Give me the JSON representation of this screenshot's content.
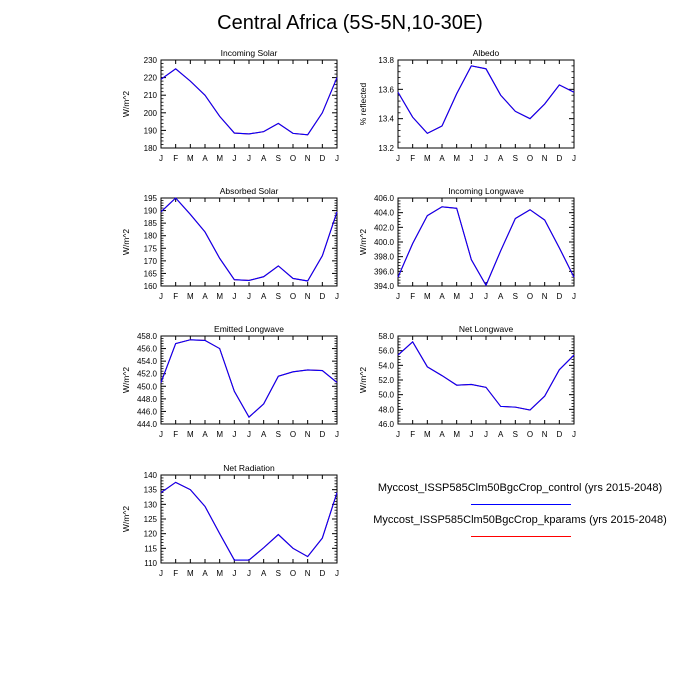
{
  "title": "Central Africa (5S-5N,10-30E)",
  "colors": {
    "control": "#0000ff",
    "kparams": "#ff0000",
    "axis": "#000000"
  },
  "legend": [
    {
      "label": "Myccost_ISSP585Clm50BgcCrop_control (yrs 2015-2048)",
      "color": "#0000ff"
    },
    {
      "label": "Myccost_ISSP585Clm50BgcCrop_kparams (yrs 2015-2048)",
      "color": "#ff0000"
    }
  ],
  "chart_data": [
    {
      "type": "line",
      "title": "Incoming Solar",
      "ylabel": "W/m^2",
      "categories": [
        "J",
        "F",
        "M",
        "A",
        "M",
        "J",
        "J",
        "A",
        "S",
        "O",
        "N",
        "D",
        "J"
      ],
      "ylim": [
        180,
        230
      ],
      "yticks": [
        180,
        190,
        200,
        210,
        220,
        230
      ],
      "ydec": 0,
      "series": [
        {
          "color": "#ff0000",
          "values": [
            219,
            225,
            218,
            210,
            198,
            188.5,
            188,
            189.3,
            194,
            188.3,
            187.5,
            200,
            220
          ]
        },
        {
          "color": "#0000ff",
          "values": [
            219,
            225,
            218,
            210,
            198,
            188.5,
            188,
            189.3,
            194,
            188.3,
            187.5,
            200,
            220
          ]
        }
      ]
    },
    {
      "type": "line",
      "title": "Albedo",
      "ylabel": "% reflected",
      "categories": [
        "J",
        "F",
        "M",
        "A",
        "M",
        "J",
        "J",
        "A",
        "S",
        "O",
        "N",
        "D",
        "J"
      ],
      "ylim": [
        13.2,
        13.8
      ],
      "yticks": [
        13.2,
        13.4,
        13.6,
        13.8
      ],
      "ydec": 1,
      "series": [
        {
          "color": "#ff0000",
          "values": [
            13.58,
            13.41,
            13.3,
            13.35,
            13.57,
            13.76,
            13.74,
            13.56,
            13.45,
            13.4,
            13.5,
            13.63,
            13.58
          ]
        },
        {
          "color": "#0000ff",
          "values": [
            13.58,
            13.41,
            13.3,
            13.35,
            13.57,
            13.76,
            13.74,
            13.56,
            13.45,
            13.4,
            13.5,
            13.63,
            13.58
          ]
        }
      ]
    },
    {
      "type": "line",
      "title": "Absorbed Solar",
      "ylabel": "W/m^2",
      "categories": [
        "J",
        "F",
        "M",
        "A",
        "M",
        "J",
        "J",
        "A",
        "S",
        "O",
        "N",
        "D",
        "J"
      ],
      "ylim": [
        160,
        195
      ],
      "yticks": [
        160,
        165,
        170,
        175,
        180,
        185,
        190,
        195
      ],
      "ydec": 0,
      "series": [
        {
          "color": "#ff0000",
          "values": [
            189.5,
            195,
            188.5,
            181.5,
            171,
            162.5,
            162.2,
            163.7,
            168,
            163,
            162,
            172,
            189.5
          ]
        },
        {
          "color": "#0000ff",
          "values": [
            189.5,
            195,
            188.5,
            181.5,
            171,
            162.5,
            162.2,
            163.7,
            168,
            163,
            162,
            172,
            189.5
          ]
        }
      ]
    },
    {
      "type": "line",
      "title": "Incoming Longwave",
      "ylabel": "W/m^2",
      "categories": [
        "J",
        "F",
        "M",
        "A",
        "M",
        "J",
        "J",
        "A",
        "S",
        "O",
        "N",
        "D",
        "J"
      ],
      "ylim": [
        394,
        406
      ],
      "yticks": [
        394,
        396,
        398,
        400,
        402,
        404,
        406
      ],
      "ydec": 1,
      "series": [
        {
          "color": "#ff0000",
          "values": [
            395.2,
            399.8,
            403.6,
            404.8,
            404.6,
            397.6,
            394.1,
            398.8,
            403.2,
            404.4,
            403,
            399.2,
            395.2
          ]
        },
        {
          "color": "#0000ff",
          "values": [
            395.2,
            399.8,
            403.6,
            404.8,
            404.6,
            397.6,
            394.1,
            398.8,
            403.2,
            404.4,
            403,
            399.2,
            395.2
          ]
        }
      ]
    },
    {
      "type": "line",
      "title": "Emitted Longwave",
      "ylabel": "W/m^2",
      "categories": [
        "J",
        "F",
        "M",
        "A",
        "M",
        "J",
        "J",
        "A",
        "S",
        "O",
        "N",
        "D",
        "J"
      ],
      "ylim": [
        444,
        458
      ],
      "yticks": [
        444,
        446,
        448,
        450,
        452,
        454,
        456,
        458
      ],
      "ydec": 1,
      "series": [
        {
          "color": "#ff0000",
          "values": [
            450.6,
            456.8,
            457.4,
            457.3,
            456,
            449.2,
            445.1,
            447.2,
            451.6,
            452.3,
            452.6,
            452.5,
            450.6
          ]
        },
        {
          "color": "#0000ff",
          "values": [
            450.6,
            456.8,
            457.4,
            457.3,
            456,
            449.2,
            445.1,
            447.2,
            451.6,
            452.3,
            452.6,
            452.5,
            450.6
          ]
        }
      ]
    },
    {
      "type": "line",
      "title": "Net Longwave",
      "ylabel": "W/m^2",
      "categories": [
        "J",
        "F",
        "M",
        "A",
        "M",
        "J",
        "J",
        "A",
        "S",
        "O",
        "N",
        "D",
        "J"
      ],
      "ylim": [
        46,
        58
      ],
      "yticks": [
        46,
        48,
        50,
        52,
        54,
        56,
        58
      ],
      "ydec": 1,
      "series": [
        {
          "color": "#ff0000",
          "values": [
            55.4,
            57.2,
            53.8,
            52.6,
            51.3,
            51.4,
            51,
            48.4,
            48.3,
            47.9,
            49.8,
            53.4,
            55.4
          ]
        },
        {
          "color": "#0000ff",
          "values": [
            55.4,
            57.2,
            53.8,
            52.6,
            51.3,
            51.4,
            51,
            48.4,
            48.3,
            47.9,
            49.8,
            53.4,
            55.4
          ]
        }
      ]
    },
    {
      "type": "line",
      "title": "Net Radiation",
      "ylabel": "W/m^2",
      "categories": [
        "J",
        "F",
        "M",
        "A",
        "M",
        "J",
        "J",
        "A",
        "S",
        "O",
        "N",
        "D",
        "J"
      ],
      "ylim": [
        110,
        140
      ],
      "yticks": [
        110,
        115,
        120,
        125,
        130,
        135,
        140
      ],
      "ydec": 0,
      "series": [
        {
          "color": "#ff0000",
          "values": [
            134,
            137.5,
            135,
            129.3,
            120,
            111,
            111,
            115.2,
            119.7,
            115,
            112.2,
            118.5,
            134
          ]
        },
        {
          "color": "#0000ff",
          "values": [
            134,
            137.5,
            135,
            129.3,
            120,
            111,
            111,
            115.2,
            119.7,
            115,
            112.2,
            118.5,
            134
          ]
        }
      ]
    }
  ]
}
